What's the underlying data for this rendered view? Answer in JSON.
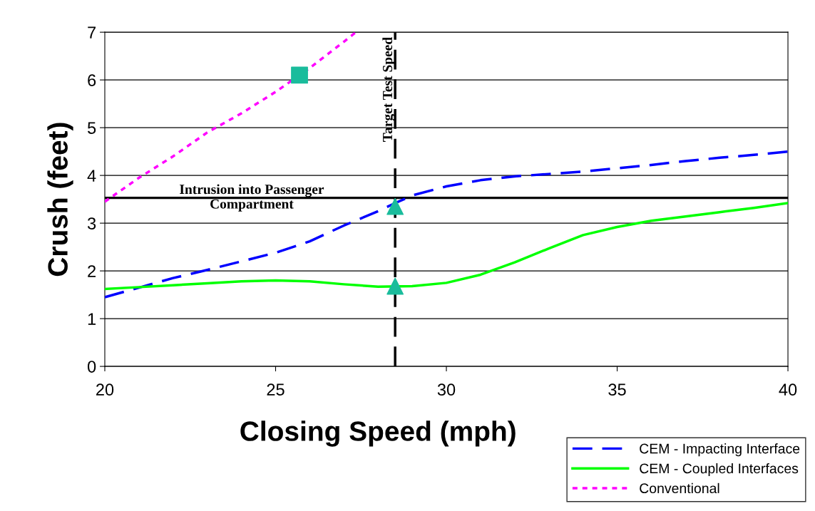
{
  "chart_data": {
    "type": "line",
    "xlabel": "Closing Speed (mph)",
    "ylabel": "Crush (feet)",
    "xlim": [
      20,
      40
    ],
    "xticks": [
      20,
      25,
      30,
      35,
      40
    ],
    "ylim": [
      0,
      7
    ],
    "yticks": [
      0,
      1,
      2,
      3,
      4,
      5,
      6,
      7
    ],
    "grid": "y",
    "legend": "bottom right",
    "series": [
      {
        "name": "CEM - Impacting Interface",
        "color": "#0000ff",
        "line_style": "dashed",
        "x": [
          20,
          21,
          22,
          23,
          24,
          25,
          26,
          27,
          28,
          28.5,
          29,
          30,
          31,
          32,
          33,
          34,
          35,
          36,
          37,
          38,
          39,
          40
        ],
        "values": [
          1.45,
          1.65,
          1.85,
          2.02,
          2.2,
          2.38,
          2.62,
          2.95,
          3.25,
          3.42,
          3.58,
          3.77,
          3.9,
          3.98,
          4.03,
          4.08,
          4.15,
          4.22,
          4.3,
          4.37,
          4.43,
          4.5
        ]
      },
      {
        "name": "CEM - Coupled Interfaces",
        "color": "#00ff00",
        "line_style": "solid",
        "x": [
          20,
          21,
          22,
          23,
          24,
          25,
          26,
          27,
          28,
          29,
          30,
          31,
          32,
          33,
          34,
          35,
          36,
          37,
          38,
          39,
          40
        ],
        "values": [
          1.62,
          1.66,
          1.7,
          1.74,
          1.78,
          1.8,
          1.78,
          1.72,
          1.67,
          1.68,
          1.75,
          1.92,
          2.18,
          2.47,
          2.75,
          2.92,
          3.05,
          3.14,
          3.23,
          3.32,
          3.42
        ]
      },
      {
        "name": "Conventional",
        "color": "#ff00ff",
        "line_style": "dotted",
        "x": [
          20,
          21,
          22,
          23,
          24,
          25,
          26,
          27,
          27.35
        ],
        "values": [
          3.45,
          3.95,
          4.4,
          4.9,
          5.3,
          5.75,
          6.25,
          6.8,
          7.0
        ]
      },
      {
        "type": "scatter",
        "color": "#1abc9c",
        "marker": "square",
        "x": [
          25.7
        ],
        "values": [
          6.1
        ]
      },
      {
        "type": "scatter",
        "color": "#1abc9c",
        "marker": "triangle",
        "x": [
          28.5,
          28.5
        ],
        "values": [
          3.35,
          1.68
        ]
      }
    ],
    "ref_lines": [
      {
        "axis": "y",
        "value": 3.53,
        "label": "Intrusion into Passenger\nCompartment",
        "color": "#000000",
        "line_style": "solid"
      },
      {
        "axis": "x",
        "value": 28.5,
        "label": "Target Test Speed",
        "color": "#000000",
        "line_style": "dashed"
      }
    ]
  }
}
